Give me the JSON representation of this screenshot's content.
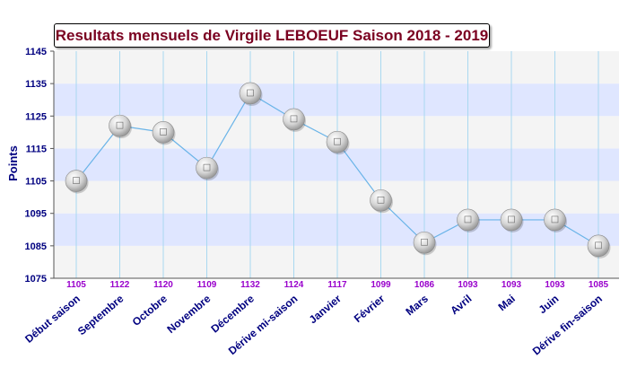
{
  "chart_data": {
    "type": "line",
    "title": "Resultats mensuels de Virgile LEBOEUF Saison 2018 - 2019",
    "xlabel": "",
    "ylabel": "Points",
    "ylim": [
      1075,
      1145
    ],
    "yticks": [
      1075,
      1085,
      1095,
      1105,
      1115,
      1125,
      1135,
      1145
    ],
    "grid": true,
    "legend": "none",
    "categories": [
      "Début saison",
      "Septembre",
      "Octobre",
      "Novembre",
      "Décembre",
      "Dérive mi-saison",
      "Janvier",
      "Février",
      "Mars",
      "Avril",
      "Mai",
      "Juin",
      "Dérive fin-saison"
    ],
    "values": [
      1105,
      1122,
      1120,
      1109,
      1132,
      1124,
      1117,
      1099,
      1086,
      1093,
      1093,
      1093,
      1085
    ]
  },
  "colors": {
    "title_text": "#7a0020",
    "axis_text": "#000080",
    "value_label": "#9900cc",
    "line": "#6ab4e8",
    "band_blue": "#dfe6ff",
    "band_gray": "#f4f4f4",
    "vertical_grid": "#a9d8f0"
  },
  "marker_icon": "ball-marker-icon"
}
